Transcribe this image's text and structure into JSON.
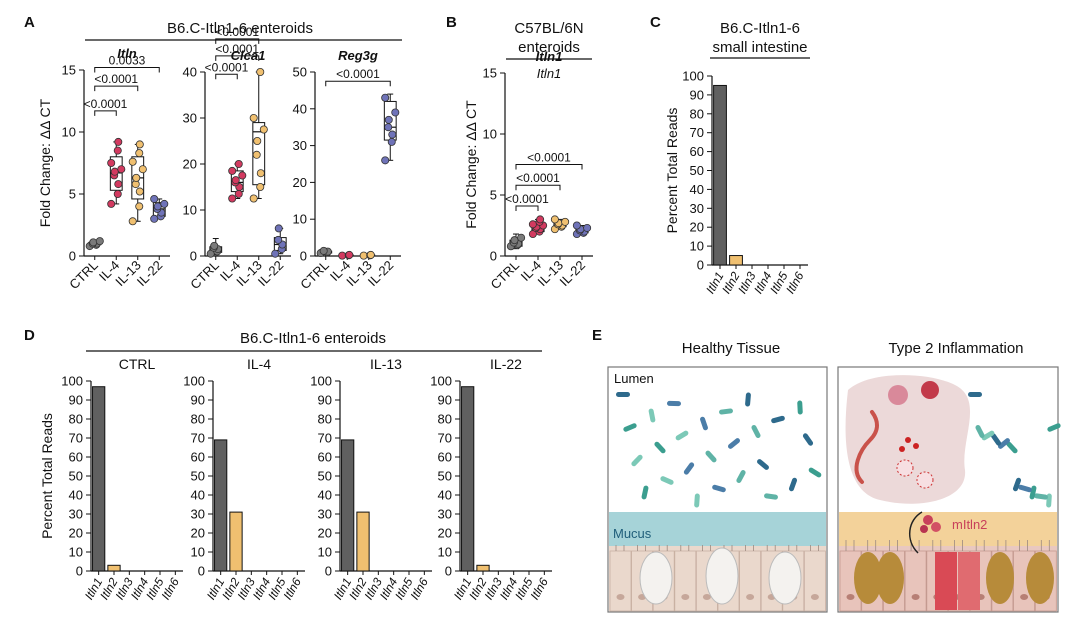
{
  "panels": {
    "A": {
      "letter": "A",
      "title": "B6.C-Itln1-6 enteroids"
    },
    "B": {
      "letter": "B",
      "title_line1": "C57BL/6N",
      "title_line2": "enteroids",
      "gene": "Itln1"
    },
    "C": {
      "letter": "C",
      "title_line1": "B6.C-Itln1-6",
      "title_line2": "small intestine"
    },
    "D": {
      "letter": "D",
      "title": "B6.C-Itln1-6 enteroids"
    },
    "E": {
      "letter": "E"
    }
  },
  "colors": {
    "CTRL": "#7a7a7a",
    "IL-4": "#d23a60",
    "IL-13": "#f0c070",
    "IL-22": "#6f73b8",
    "bar1": "#606060",
    "bar2": "#f0c070"
  },
  "chart_data": [
    {
      "id": "A1",
      "panel": "A",
      "type": "box",
      "gene": "Itln",
      "ylabel": "Fold Change: ΔΔ CT",
      "categories": [
        "CTRL",
        "IL-4",
        "IL-13",
        "IL-22"
      ],
      "ylim": [
        0,
        15
      ],
      "yticks": [
        0,
        5,
        10,
        15
      ],
      "series": [
        {
          "name": "CTRL",
          "points": [
            0.8,
            0.9,
            1.0,
            1.0,
            1.1,
            1.2
          ],
          "q1": 0.9,
          "median": 1.0,
          "q3": 1.1,
          "min": 0.8,
          "max": 1.2
        },
        {
          "name": "IL-4",
          "points": [
            4.2,
            5.0,
            5.8,
            6.5,
            6.8,
            7.0,
            7.5,
            8.5,
            9.2
          ],
          "q1": 5.3,
          "median": 6.7,
          "q3": 8.0,
          "min": 4.2,
          "max": 9.2
        },
        {
          "name": "IL-13",
          "points": [
            2.8,
            4.0,
            5.2,
            5.8,
            6.3,
            7.0,
            7.6,
            8.3,
            9.0
          ],
          "q1": 4.6,
          "median": 6.3,
          "q3": 8.0,
          "min": 2.8,
          "max": 9.0
        },
        {
          "name": "IL-22",
          "points": [
            3.0,
            3.2,
            3.5,
            3.8,
            4.0,
            4.2,
            4.6
          ],
          "q1": 3.2,
          "median": 3.8,
          "q3": 4.3,
          "min": 3.0,
          "max": 4.6
        }
      ],
      "comparisons": [
        {
          "from": 0,
          "to": 1,
          "label": "<0.0001",
          "y": 11.7
        },
        {
          "from": 0,
          "to": 2,
          "label": "<0.0001",
          "y": 13.7
        },
        {
          "from": 0,
          "to": 3,
          "label": "0.0033",
          "y": 15.2
        }
      ]
    },
    {
      "id": "A2",
      "panel": "A",
      "type": "box",
      "gene": "Clca1",
      "ylabel": "",
      "categories": [
        "CTRL",
        "IL-4",
        "IL-13",
        "IL-22"
      ],
      "ylim": [
        0,
        40
      ],
      "yticks": [
        0,
        10,
        20,
        30,
        40
      ],
      "series": [
        {
          "name": "CTRL",
          "points": [
            0.5,
            1.0,
            1.5,
            1.8,
            2.2
          ],
          "q1": 0.8,
          "median": 1.4,
          "q3": 2.0,
          "min": 0.3,
          "max": 3.8
        },
        {
          "name": "IL-4",
          "points": [
            12.5,
            13.5,
            15.0,
            16.0,
            16.5,
            17.5,
            18.5,
            20.0
          ],
          "q1": 14.0,
          "median": 16.0,
          "q3": 18.5,
          "min": 12.5,
          "max": 20.0
        },
        {
          "name": "IL-13",
          "points": [
            12.5,
            15.0,
            18.0,
            22.0,
            25.0,
            27.5,
            30.0,
            40.0
          ],
          "q1": 15.5,
          "median": 27.0,
          "q3": 29.0,
          "min": 12.5,
          "max": 40.0
        },
        {
          "name": "IL-22",
          "points": [
            0.5,
            1.5,
            2.5,
            3.5,
            6.0
          ],
          "q1": 1.2,
          "median": 2.5,
          "q3": 4.0,
          "min": 0.5,
          "max": 6.0
        }
      ],
      "comparisons": [
        {
          "from": 0,
          "to": 1,
          "label": "<0.0001",
          "y": 39.5
        },
        {
          "from": 0,
          "to": 2,
          "label": "<0.0001",
          "y": 43.5
        },
        {
          "from": 0,
          "to": 2,
          "label": "<0.0001",
          "y": 47.2
        }
      ]
    },
    {
      "id": "A3",
      "panel": "A",
      "type": "box",
      "gene": "Reg3g",
      "ylabel": "",
      "categories": [
        "CTRL",
        "IL-4",
        "IL-13",
        "IL-22"
      ],
      "ylim": [
        0,
        50
      ],
      "yticks": [
        0,
        10,
        20,
        30,
        40,
        50
      ],
      "series": [
        {
          "name": "CTRL",
          "points": [
            0.8,
            1.0,
            1.2,
            1.4
          ],
          "q1": 0.8,
          "median": 1.0,
          "q3": 1.3,
          "min": 0.6,
          "max": 1.5
        },
        {
          "name": "IL-4",
          "points": [
            0.1,
            0.2,
            0.3
          ],
          "q1": 0.1,
          "median": 0.2,
          "q3": 0.3,
          "min": 0.1,
          "max": 0.3
        },
        {
          "name": "IL-13",
          "points": [
            0.1,
            0.2,
            0.3
          ],
          "q1": 0.1,
          "median": 0.2,
          "q3": 0.3,
          "min": 0.1,
          "max": 0.3
        },
        {
          "name": "IL-22",
          "points": [
            26.0,
            31.0,
            33.0,
            35.0,
            37.0,
            39.0,
            43.0
          ],
          "q1": 31.5,
          "median": 35.0,
          "q3": 42.0,
          "min": 26.0,
          "max": 44.0
        }
      ],
      "comparisons": [
        {
          "from": 0,
          "to": 3,
          "label": "<0.0001",
          "y": 47.5
        }
      ]
    },
    {
      "id": "B",
      "panel": "B",
      "type": "box",
      "gene": "Itln1",
      "ylabel": "Fold Change: ΔΔ CT",
      "categories": [
        "CTRL",
        "IL-4",
        "IL-13",
        "IL-22"
      ],
      "ylim": [
        0,
        15
      ],
      "yticks": [
        0,
        5,
        10,
        15
      ],
      "series": [
        {
          "name": "CTRL",
          "points": [
            0.8,
            0.9,
            1.0,
            1.1,
            1.3,
            1.5
          ],
          "q1": 0.8,
          "median": 1.0,
          "q3": 1.3,
          "min": 0.6,
          "max": 1.8
        },
        {
          "name": "IL-4",
          "points": [
            1.8,
            2.0,
            2.2,
            2.3,
            2.4,
            2.5,
            2.6,
            2.8,
            3.0
          ],
          "q1": 2.0,
          "median": 2.4,
          "q3": 2.6,
          "min": 1.8,
          "max": 3.0
        },
        {
          "name": "IL-13",
          "points": [
            2.2,
            2.4,
            2.5,
            2.6,
            2.7,
            2.8,
            3.0
          ],
          "q1": 2.4,
          "median": 2.6,
          "q3": 2.8,
          "min": 2.2,
          "max": 3.0
        },
        {
          "name": "IL-22",
          "points": [
            1.8,
            1.9,
            2.0,
            2.1,
            2.2,
            2.3,
            2.5
          ],
          "q1": 1.9,
          "median": 2.1,
          "q3": 2.3,
          "min": 1.8,
          "max": 2.5
        }
      ],
      "comparisons": [
        {
          "from": 0,
          "to": 1,
          "label": "<0.0001",
          "y": 4.1
        },
        {
          "from": 0,
          "to": 2,
          "label": "<0.0001",
          "y": 5.8
        },
        {
          "from": 0,
          "to": 3,
          "label": "<0.0001",
          "y": 7.5
        }
      ]
    },
    {
      "id": "C",
      "panel": "C",
      "type": "bar",
      "ylabel": "Percent Total Reads",
      "categories": [
        "Itln1",
        "Itln2",
        "Itln3",
        "Itln4",
        "Itln5",
        "Itln6"
      ],
      "values": [
        95,
        5,
        0,
        0,
        0,
        0
      ],
      "ylim": [
        0,
        100
      ],
      "yticks": [
        0,
        10,
        20,
        30,
        40,
        50,
        60,
        70,
        80,
        90,
        100
      ]
    },
    {
      "id": "D1",
      "panel": "D",
      "type": "bar",
      "title": "CTRL",
      "ylabel": "Percent Total Reads",
      "categories": [
        "Itln1",
        "Itln2",
        "Itln3",
        "Itln4",
        "Itln5",
        "Itln6"
      ],
      "values": [
        97,
        3,
        0,
        0,
        0,
        0
      ],
      "ylim": [
        0,
        100
      ],
      "yticks": [
        0,
        10,
        20,
        30,
        40,
        50,
        60,
        70,
        80,
        90,
        100
      ]
    },
    {
      "id": "D2",
      "panel": "D",
      "type": "bar",
      "title": "IL-4",
      "ylabel": "",
      "categories": [
        "Itln1",
        "Itln2",
        "Itln3",
        "Itln4",
        "Itln5",
        "Itln6"
      ],
      "values": [
        69,
        31,
        0,
        0,
        0,
        0
      ],
      "ylim": [
        0,
        100
      ],
      "yticks": [
        0,
        10,
        20,
        30,
        40,
        50,
        60,
        70,
        80,
        90,
        100
      ]
    },
    {
      "id": "D3",
      "panel": "D",
      "type": "bar",
      "title": "IL-13",
      "ylabel": "",
      "categories": [
        "Itln1",
        "Itln2",
        "Itln3",
        "Itln4",
        "Itln5",
        "Itln6"
      ],
      "values": [
        69,
        31,
        0,
        0,
        0,
        0
      ],
      "ylim": [
        0,
        100
      ],
      "yticks": [
        0,
        10,
        20,
        30,
        40,
        50,
        60,
        70,
        80,
        90,
        100
      ]
    },
    {
      "id": "D4",
      "panel": "D",
      "type": "bar",
      "title": "IL-22",
      "ylabel": "",
      "categories": [
        "Itln1",
        "Itln2",
        "Itln3",
        "Itln4",
        "Itln5",
        "Itln6"
      ],
      "values": [
        97,
        3,
        0,
        0,
        0,
        0
      ],
      "ylim": [
        0,
        100
      ],
      "yticks": [
        0,
        10,
        20,
        30,
        40,
        50,
        60,
        70,
        80,
        90,
        100
      ]
    }
  ],
  "illustration": {
    "healthy_title": "Healthy Tissue",
    "inflamed_title": "Type 2 Inflammation",
    "lumen_label": "Lumen",
    "mucus_label": "Mucus",
    "mitln2_label": "mItln2"
  }
}
